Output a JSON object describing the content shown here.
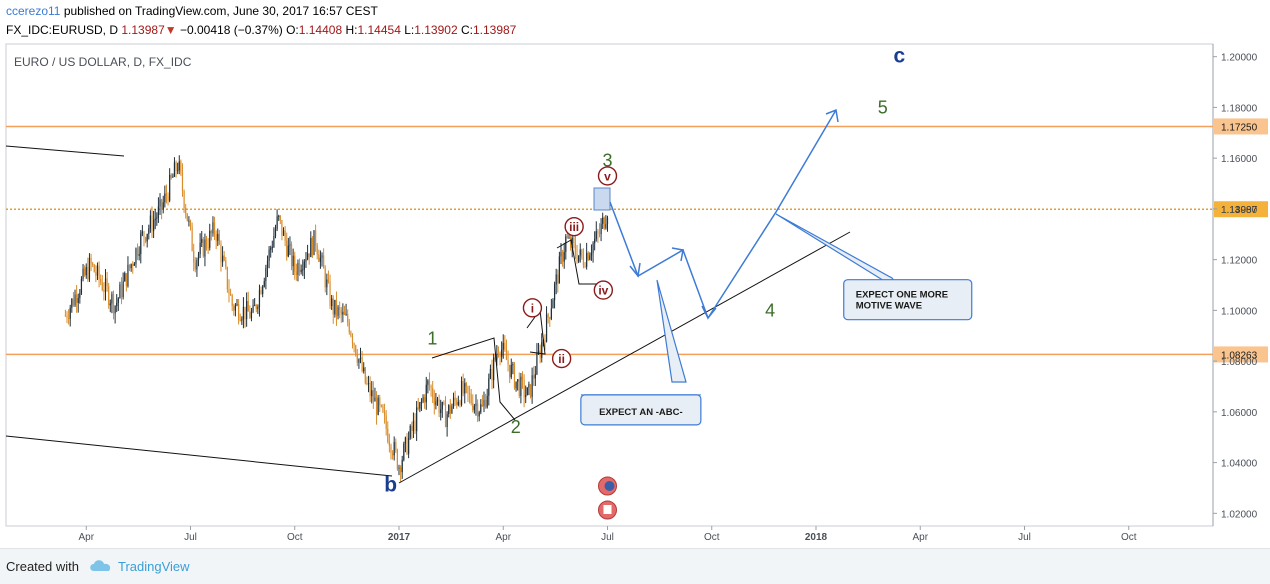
{
  "header": {
    "author": "ccerezo11",
    "published_text": "published on TradingView.com, June 30, 2017 16:57 CEST",
    "symbol": "FX_IDC:EURUSD, D",
    "last": "1.13987",
    "change": "−0.00418 (−0.37%)",
    "o_label": "O:",
    "o_value": "1.14408",
    "h_label": "H:",
    "h_value": "1.14454",
    "l_label": "L:",
    "l_value": "1.13902",
    "c_label": "C:",
    "c_value": "1.13987"
  },
  "footer": {
    "created_with": "Created with",
    "brand": "TradingView"
  },
  "chart_data": {
    "type": "candlestick",
    "title": "EURO / US DOLLAR, D, FX_IDC",
    "y_ticks": [
      "1.20000",
      "1.18000",
      "1.16000",
      "1.14000",
      "1.12000",
      "1.10000",
      "1.08000",
      "1.06000",
      "1.04000",
      "1.02000"
    ],
    "ylim": [
      1.015,
      1.205
    ],
    "x_ticks": [
      "Apr",
      "Jul",
      "Oct",
      "2017",
      "Apr",
      "Jul",
      "Oct",
      "2018",
      "Apr",
      "Jul",
      "Oct"
    ],
    "horizontal_levels": [
      {
        "value": 1.1725,
        "label": "1.17250",
        "style": "solid",
        "color": "#f5a05a"
      },
      {
        "value": 1.13987,
        "label": "1.13987",
        "style": "dotted",
        "color": "#e0a030"
      },
      {
        "value": 1.08263,
        "label": "1.08263",
        "style": "solid",
        "color": "#f5a05a"
      }
    ],
    "price_path": [
      [
        -0.8,
        1.098
      ],
      [
        -0.74,
        1.118
      ],
      [
        -0.68,
        1.102
      ],
      [
        -0.62,
        1.128
      ],
      [
        -0.57,
        1.14
      ],
      [
        -0.53,
        1.158
      ],
      [
        -0.49,
        1.12
      ],
      [
        -0.44,
        1.132
      ],
      [
        -0.4,
        1.102
      ],
      [
        -0.35,
        1.098
      ],
      [
        -0.29,
        1.136
      ],
      [
        -0.25,
        1.116
      ],
      [
        -0.2,
        1.128
      ],
      [
        -0.16,
        1.101
      ],
      [
        -0.12,
        1.095
      ],
      [
        -0.08,
        1.071
      ],
      [
        -0.04,
        1.058
      ],
      [
        0.0,
        1.039
      ],
      [
        0.03,
        1.052
      ],
      [
        0.07,
        1.071
      ],
      [
        0.11,
        1.058
      ],
      [
        0.15,
        1.068
      ],
      [
        0.2,
        1.061
      ],
      [
        0.24,
        1.087
      ],
      [
        0.28,
        1.072
      ],
      [
        0.31,
        1.066
      ],
      [
        0.35,
        1.092
      ],
      [
        0.4,
        1.128
      ],
      [
        0.44,
        1.12
      ],
      [
        0.48,
        1.13
      ],
      [
        0.5,
        1.14
      ]
    ],
    "wave_labels": [
      {
        "text": "c",
        "x": 1.2,
        "y": 1.2,
        "color": "#1a3d8f",
        "circled": false
      },
      {
        "text": "5",
        "x": 1.16,
        "y": 1.18,
        "color": "#3c6e2a",
        "circled": false
      },
      {
        "text": "3",
        "x": 0.5,
        "y": 1.159,
        "color": "#3c6e2a",
        "circled": false
      },
      {
        "text": "v",
        "x": 0.5,
        "y": 1.153,
        "color": "#8b1a1a",
        "circled": true
      },
      {
        "text": "iii",
        "x": 0.42,
        "y": 1.133,
        "color": "#8b1a1a",
        "circled": true
      },
      {
        "text": "iv",
        "x": 0.49,
        "y": 1.108,
        "color": "#8b1a1a",
        "circled": true
      },
      {
        "text": "i",
        "x": 0.32,
        "y": 1.101,
        "color": "#8b1a1a",
        "circled": true
      },
      {
        "text": "ii",
        "x": 0.39,
        "y": 1.081,
        "color": "#8b1a1a",
        "circled": true
      },
      {
        "text": "1",
        "x": 0.08,
        "y": 1.089,
        "color": "#3c6e2a",
        "circled": false
      },
      {
        "text": "2",
        "x": 0.28,
        "y": 1.054,
        "color": "#3c6e2a",
        "circled": false
      },
      {
        "text": "4",
        "x": 0.89,
        "y": 1.1,
        "color": "#3c6e2a",
        "circled": false
      },
      {
        "text": "b",
        "x": -0.02,
        "y": 1.031,
        "color": "#1a3d8f",
        "circled": false
      }
    ],
    "callouts": [
      {
        "text": [
          "EXPECT AN -ABC-"
        ],
        "x": 0.58,
        "y": 1.06
      },
      {
        "text": [
          "EXPECT ONE MORE",
          "MOTIVE WAVE"
        ],
        "x": 1.22,
        "y": 1.105
      }
    ],
    "grid": false,
    "legend": "none"
  }
}
